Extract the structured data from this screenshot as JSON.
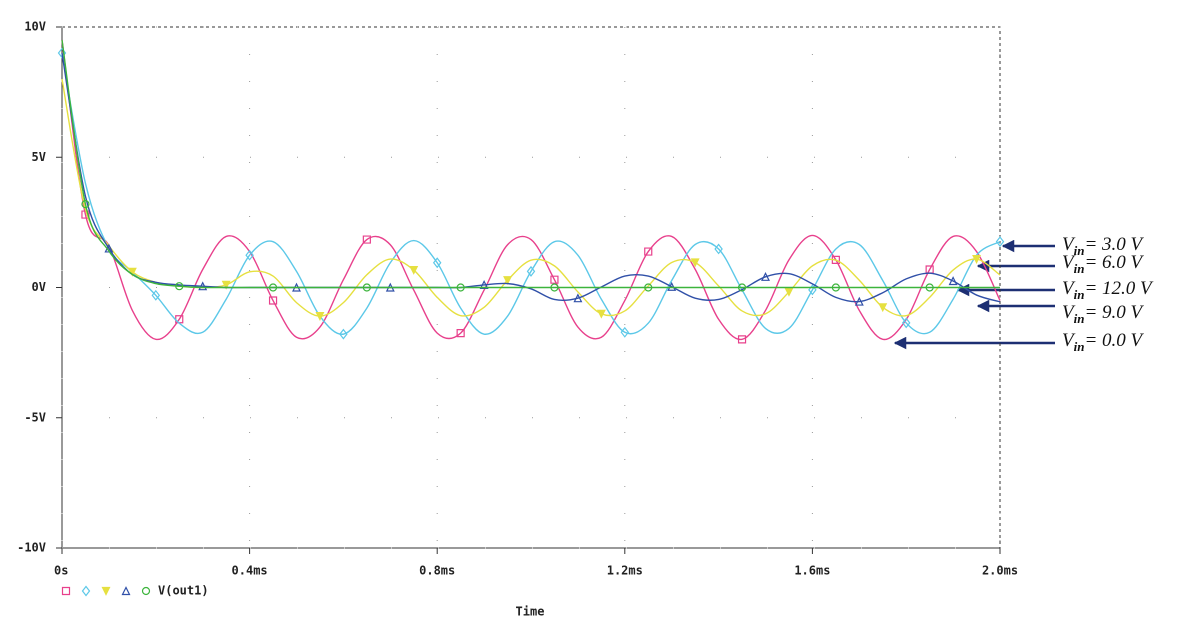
{
  "chart_data": {
    "type": "line",
    "x_label": "Time",
    "x": [
      0,
      0.05,
      0.1,
      0.15,
      0.2,
      0.25,
      0.3,
      0.35,
      0.4,
      0.45,
      0.5,
      0.55,
      0.6,
      0.65,
      0.7,
      0.75,
      0.8,
      0.85,
      0.9,
      0.95,
      1.0,
      1.05,
      1.1,
      1.15,
      1.2,
      1.25,
      1.3,
      1.35,
      1.4,
      1.45,
      1.5,
      1.55,
      1.6,
      1.65,
      1.7,
      1.75,
      1.8,
      1.85,
      1.9,
      1.95,
      2.0
    ],
    "xlim": [
      0,
      2
    ],
    "xticks": [
      {
        "value": 0,
        "label": "0s"
      },
      {
        "value": 0.4,
        "label": "0.4ms"
      },
      {
        "value": 0.8,
        "label": "0.8ms"
      },
      {
        "value": 1.2,
        "label": "1.2ms"
      },
      {
        "value": 1.6,
        "label": "1.6ms"
      },
      {
        "value": 2.0,
        "label": "2.0ms"
      }
    ],
    "ylim": [
      -10,
      10
    ],
    "yticks": [
      {
        "value": -10,
        "label": "-10V"
      },
      {
        "value": -5,
        "label": "-5V"
      },
      {
        "value": 0,
        "label": "0V"
      },
      {
        "value": 5,
        "label": "5V"
      },
      {
        "value": 10,
        "label": "10V"
      }
    ],
    "grid": true,
    "series": [
      {
        "color": "#e8408c",
        "marker": "square",
        "values": [
          9.5,
          2.8,
          1.6,
          -0.88,
          -1.99,
          -1.22,
          0.69,
          1.96,
          1.38,
          -0.5,
          -1.91,
          -1.52,
          0.3,
          1.84,
          1.64,
          -0.1,
          -1.75,
          -1.75,
          -0.1,
          1.64,
          1.84,
          0.3,
          -1.52,
          -1.91,
          -0.5,
          1.38,
          1.96,
          0.7,
          -1.22,
          -1.99,
          -0.88,
          1.06,
          2.0,
          1.06,
          -0.88,
          -1.99,
          -1.23,
          0.69,
          1.96,
          1.38,
          -0.5
        ]
      },
      {
        "color": "#5cc8e8",
        "marker": "diamond",
        "values": [
          9.0,
          4.0,
          1.5,
          0.6,
          -0.3,
          -1.37,
          -1.72,
          -0.45,
          1.24,
          1.76,
          0.62,
          -1.1,
          -1.79,
          -0.79,
          0.95,
          1.8,
          0.95,
          -0.79,
          -1.79,
          -1.1,
          0.62,
          1.76,
          1.24,
          -0.45,
          -1.72,
          -1.37,
          0.27,
          1.65,
          1.48,
          -0.09,
          -1.57,
          -1.57,
          -0.09,
          1.48,
          1.65,
          0.27,
          -1.36,
          -1.72,
          -0.45,
          1.24,
          1.76
        ]
      },
      {
        "color": "#e6e040",
        "marker": "down-triangle",
        "values": [
          8.0,
          3.0,
          1.6,
          0.6,
          0.2,
          0.05,
          0.0,
          0.1,
          0.6,
          0.44,
          -0.58,
          -1.1,
          -0.58,
          0.49,
          1.09,
          0.67,
          -0.38,
          -1.08,
          -0.76,
          0.28,
          1.05,
          0.83,
          -0.17,
          -1.01,
          -0.9,
          0.06,
          0.96,
          0.96,
          0.06,
          -0.9,
          -1.01,
          -0.17,
          0.83,
          1.05,
          0.28,
          -0.76,
          -1.08,
          -0.38,
          0.67,
          1.09,
          0.48
        ]
      },
      {
        "color": "#3050a8",
        "marker": "up-triangle",
        "values": [
          9.0,
          3.5,
          1.5,
          0.5,
          0.2,
          0.1,
          0.05,
          0,
          0,
          0,
          0,
          0,
          0,
          0,
          0,
          0,
          0,
          0,
          0.1,
          0.15,
          -0.05,
          -0.46,
          -0.41,
          0.02,
          0.44,
          0.44,
          0.03,
          -0.41,
          -0.46,
          -0.08,
          0.41,
          0.53,
          0.14,
          -0.38,
          -0.54,
          -0.2,
          0.33,
          0.55,
          0.25,
          -0.29,
          -0.55
        ]
      },
      {
        "name": "V(out1)",
        "color": "#3cb43c",
        "marker": "circle",
        "values": [
          9.5,
          3.2,
          1.4,
          0.5,
          0.15,
          0.05,
          0,
          0,
          0,
          0,
          0,
          0,
          0,
          0,
          0,
          0,
          0,
          0,
          0,
          0,
          0,
          0,
          0,
          0,
          0,
          0,
          0,
          0,
          0,
          0,
          0,
          0,
          0,
          0,
          0,
          0,
          0,
          0,
          0,
          0,
          0
        ]
      }
    ],
    "annotations": [
      {
        "symbol": "V",
        "subscript": "in",
        "text": "= 3.0 V"
      },
      {
        "symbol": "V",
        "subscript": "in",
        "text": "= 6.0 V"
      },
      {
        "symbol": "V",
        "subscript": "in",
        "text": "= 12.0 V"
      },
      {
        "symbol": "V",
        "subscript": "in",
        "text": "= 9.0 V"
      },
      {
        "symbol": "V",
        "subscript": "in",
        "text": "= 0.0 V"
      }
    ]
  }
}
